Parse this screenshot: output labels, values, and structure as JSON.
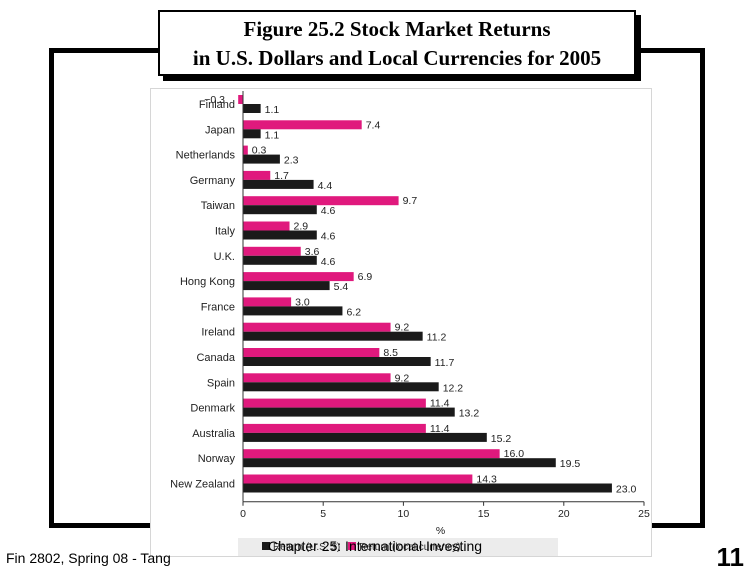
{
  "slide": {
    "title_line1": "Figure 25.2 Stock Market Returns",
    "title_line2": "in U.S. Dollars and Local Currencies for 2005",
    "footer_left": "Fin 2802, Spring 08 - Tang",
    "footer_center": "Chapter 25: International Investing",
    "page_number": "11"
  },
  "colors": {
    "local": "#e0197d",
    "usd": "#1a1a1a"
  },
  "chart_data": {
    "type": "bar",
    "orientation": "horizontal",
    "categories": [
      "Finland",
      "Japan",
      "Netherlands",
      "Germany",
      "Taiwan",
      "Italy",
      "U.K.",
      "Hong Kong",
      "France",
      "Ireland",
      "Canada",
      "Spain",
      "Denmark",
      "Australia",
      "Norway",
      "New Zealand"
    ],
    "series": [
      {
        "name": "Return (local currency)",
        "values": [
          -0.3,
          7.4,
          0.3,
          1.7,
          9.7,
          2.9,
          3.6,
          6.9,
          3.0,
          9.2,
          8.5,
          9.2,
          11.4,
          11.4,
          16.0,
          14.3
        ]
      },
      {
        "name": "Return (U.S. $)",
        "values": [
          1.1,
          1.1,
          2.3,
          4.4,
          4.6,
          4.6,
          4.6,
          5.4,
          6.2,
          11.2,
          11.7,
          12.2,
          13.2,
          15.2,
          19.5,
          23.0
        ]
      }
    ],
    "value_labels_local": [
      "−0.3",
      "7.4",
      "0.3",
      "1.7",
      "9.7",
      "2.9",
      "3.6",
      "6.9",
      "3.0",
      "9.2",
      "8.5",
      "9.2",
      "11.4",
      "11.4",
      "16.0",
      "14.3"
    ],
    "value_labels_usd": [
      "1.1",
      "1.1",
      "2.3",
      "4.4",
      "4.6",
      "4.6",
      "4.6",
      "5.4",
      "6.2",
      "11.2",
      "11.7",
      "12.2",
      "13.2",
      "15.2",
      "19.5",
      "23.0"
    ],
    "xlim": [
      -0.5,
      25
    ],
    "xticks": [
      0,
      5,
      10,
      15,
      20,
      25
    ],
    "xtick_labels": [
      "0",
      "5",
      "10",
      "15",
      "20",
      "25"
    ],
    "xlabel": "%",
    "ylabel": "",
    "grid": false,
    "legend_position": "bottom"
  }
}
